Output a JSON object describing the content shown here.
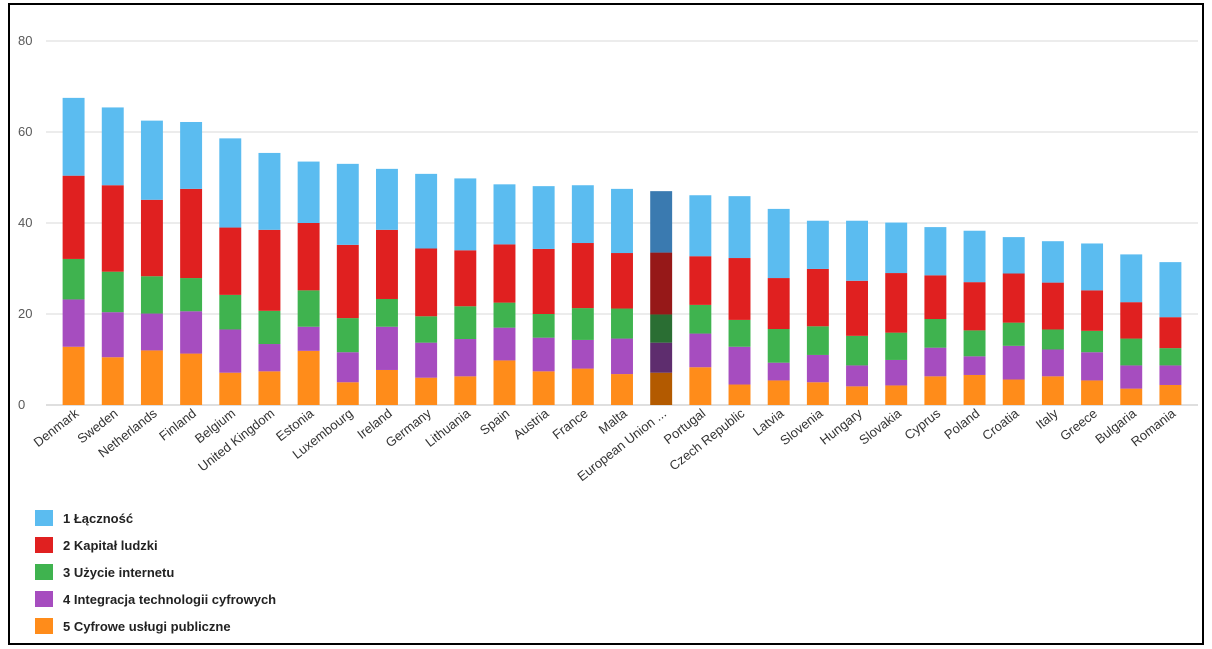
{
  "chart_data": {
    "type": "bar",
    "stacked": true,
    "title": "",
    "xlabel": "",
    "ylabel": "",
    "ylim": [
      0,
      80
    ],
    "yticks": [
      0,
      20,
      40,
      60,
      80
    ],
    "grid": true,
    "legend_position": "bottom-left",
    "categories": [
      "Denmark",
      "Sweden",
      "Netherlands",
      "Finland",
      "Belgium",
      "United Kingdom",
      "Estonia",
      "Luxembourg",
      "Ireland",
      "Germany",
      "Lithuania",
      "Spain",
      "Austria",
      "France",
      "Malta",
      "European Union ...",
      "Portugal",
      "Czech Republic",
      "Latvia",
      "Slovenia",
      "Hungary",
      "Slovakia",
      "Cyprus",
      "Poland",
      "Croatia",
      "Italy",
      "Greece",
      "Bulgaria",
      "Romania"
    ],
    "highlight_category": "European Union ...",
    "series": [
      {
        "name": "5 Cyfrowe usługi publiczne",
        "color": "#ff8c1a",
        "highlight_color": "#b35a00",
        "values": [
          12.8,
          10.5,
          12.0,
          11.3,
          7.1,
          7.4,
          11.9,
          5.0,
          7.7,
          6.0,
          6.3,
          9.8,
          7.4,
          8.0,
          6.8,
          7.1,
          8.3,
          4.5,
          5.4,
          5.0,
          4.1,
          4.3,
          6.3,
          6.6,
          5.6,
          6.3,
          5.4,
          3.6,
          4.4
        ]
      },
      {
        "name": "4 Integracja technologii cyfrowych",
        "color": "#a64dbf",
        "highlight_color": "#5e2d6e",
        "values": [
          10.4,
          9.9,
          8.1,
          9.3,
          9.5,
          6.0,
          5.3,
          6.6,
          9.5,
          7.7,
          8.2,
          7.2,
          7.4,
          6.3,
          7.8,
          6.6,
          7.4,
          8.3,
          3.9,
          6.0,
          4.6,
          5.6,
          6.3,
          4.1,
          7.4,
          5.9,
          6.2,
          5.1,
          4.3
        ]
      },
      {
        "name": "3 Użycie internetu",
        "color": "#3fb34f",
        "highlight_color": "#2a6e33",
        "values": [
          8.9,
          8.9,
          8.2,
          7.3,
          7.6,
          7.3,
          8.0,
          7.5,
          6.1,
          5.8,
          7.2,
          5.5,
          5.2,
          7.0,
          6.6,
          6.2,
          6.3,
          5.9,
          7.4,
          6.3,
          6.5,
          6.0,
          6.3,
          5.7,
          5.1,
          4.4,
          4.7,
          5.9,
          3.8
        ]
      },
      {
        "name": "2 Kapitał ludzki",
        "color": "#e02020",
        "highlight_color": "#961818",
        "values": [
          18.3,
          19.0,
          16.8,
          19.6,
          14.8,
          17.8,
          14.8,
          16.1,
          15.2,
          14.9,
          12.3,
          12.8,
          14.3,
          14.3,
          12.2,
          13.6,
          10.7,
          13.6,
          11.2,
          12.6,
          12.1,
          13.1,
          9.6,
          10.6,
          10.8,
          10.3,
          8.9,
          8.0,
          6.8
        ]
      },
      {
        "name": "1 Łączność",
        "color": "#5bbcf0",
        "highlight_color": "#3a7ab0",
        "values": [
          17.1,
          17.1,
          17.4,
          14.7,
          19.6,
          16.9,
          13.5,
          17.8,
          13.4,
          16.4,
          15.8,
          13.2,
          13.8,
          12.7,
          14.1,
          13.5,
          13.4,
          13.6,
          15.2,
          10.6,
          13.2,
          11.1,
          10.6,
          11.3,
          8.0,
          9.1,
          10.3,
          10.5,
          12.1
        ]
      }
    ]
  }
}
